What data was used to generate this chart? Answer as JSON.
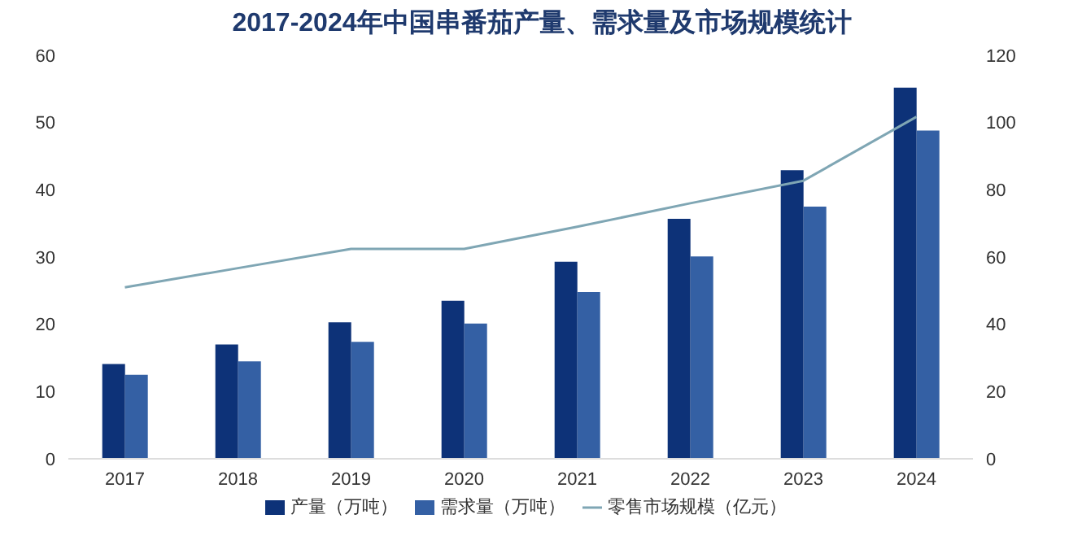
{
  "chart_data": {
    "type": "bar",
    "title": "2017-2024年中国串番茄产量、需求量及市场规模统计",
    "categories": [
      "2017",
      "2018",
      "2019",
      "2020",
      "2021",
      "2022",
      "2023",
      "2024"
    ],
    "series": [
      {
        "name": "产量（万吨）",
        "color": "#0d3278",
        "values": [
          14.1,
          17,
          20.3,
          23.5,
          29.3,
          35.7,
          42.9,
          55.2
        ]
      },
      {
        "name": "需求量（万吨）",
        "color": "#3460a4",
        "values": [
          12.5,
          14.5,
          17.4,
          20.1,
          24.8,
          30.1,
          37.5,
          48.8
        ]
      },
      {
        "name": "零售市场规模（亿元）",
        "type": "line",
        "axis": "y2",
        "color": "#7fa6b4",
        "values": [
          51,
          56.7,
          62.4,
          62.4,
          69,
          76,
          82.7,
          101.7
        ]
      }
    ],
    "ylim": [
      0,
      60
    ],
    "yticks": [
      0,
      10,
      20,
      30,
      40,
      50,
      60
    ],
    "y2lim": [
      0,
      120
    ],
    "y2ticks": [
      0,
      20,
      40,
      60,
      80,
      100,
      120
    ],
    "legend": "bottom",
    "marker": "none"
  }
}
